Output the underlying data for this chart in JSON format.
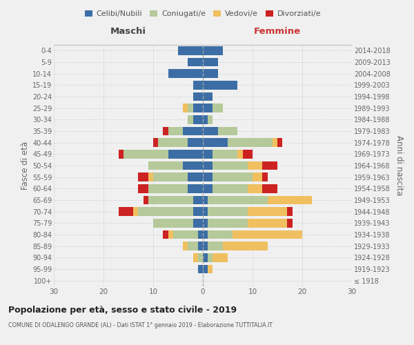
{
  "age_groups": [
    "100+",
    "95-99",
    "90-94",
    "85-89",
    "80-84",
    "75-79",
    "70-74",
    "65-69",
    "60-64",
    "55-59",
    "50-54",
    "45-49",
    "40-44",
    "35-39",
    "30-34",
    "25-29",
    "20-24",
    "15-19",
    "10-14",
    "5-9",
    "0-4"
  ],
  "birth_years": [
    "≤ 1918",
    "1919-1923",
    "1924-1928",
    "1929-1933",
    "1934-1938",
    "1939-1943",
    "1944-1948",
    "1949-1953",
    "1954-1958",
    "1959-1963",
    "1964-1968",
    "1969-1973",
    "1974-1978",
    "1979-1983",
    "1984-1988",
    "1989-1993",
    "1994-1998",
    "1999-2003",
    "2004-2008",
    "2009-2013",
    "2014-2018"
  ],
  "colors": {
    "celibi": "#3c6ea5",
    "coniugati": "#b5c99a",
    "vedovi": "#f0c060",
    "divorziati": "#cc2222"
  },
  "males": {
    "celibi": [
      0,
      1,
      0,
      1,
      1,
      2,
      2,
      2,
      3,
      3,
      4,
      7,
      3,
      4,
      2,
      2,
      2,
      2,
      7,
      3,
      5
    ],
    "coniugati": [
      0,
      0,
      1,
      2,
      5,
      8,
      11,
      9,
      8,
      7,
      7,
      9,
      6,
      3,
      1,
      1,
      0,
      0,
      0,
      0,
      0
    ],
    "vedovi": [
      0,
      0,
      1,
      1,
      1,
      0,
      1,
      0,
      0,
      1,
      0,
      0,
      0,
      0,
      0,
      1,
      0,
      0,
      0,
      0,
      0
    ],
    "divorziati": [
      0,
      0,
      0,
      0,
      1,
      0,
      3,
      1,
      2,
      2,
      0,
      1,
      1,
      1,
      0,
      0,
      0,
      0,
      0,
      0,
      0
    ]
  },
  "females": {
    "celibi": [
      0,
      1,
      1,
      1,
      1,
      1,
      1,
      1,
      2,
      2,
      2,
      2,
      5,
      3,
      1,
      2,
      2,
      7,
      3,
      3,
      4
    ],
    "coniugati": [
      0,
      0,
      1,
      3,
      5,
      8,
      8,
      12,
      7,
      8,
      7,
      5,
      9,
      4,
      1,
      2,
      0,
      0,
      0,
      0,
      0
    ],
    "vedovi": [
      0,
      1,
      3,
      9,
      14,
      8,
      8,
      9,
      3,
      2,
      3,
      1,
      1,
      0,
      0,
      0,
      0,
      0,
      0,
      0,
      0
    ],
    "divorziati": [
      0,
      0,
      0,
      0,
      0,
      1,
      1,
      0,
      3,
      1,
      3,
      2,
      1,
      0,
      0,
      0,
      0,
      0,
      0,
      0,
      0
    ]
  },
  "title": "Popolazione per età, sesso e stato civile - 2019",
  "subtitle": "COMUNE DI ODALENGO GRANDE (AL) - Dati ISTAT 1° gennaio 2019 - Elaborazione TUTTITALIA.IT",
  "xlabel_left": "Maschi",
  "xlabel_right": "Femmine",
  "ylabel_left": "Fasce di età",
  "ylabel_right": "Anni di nascita",
  "xlim": 30,
  "legend_labels": [
    "Celibi/Nubili",
    "Coniugati/e",
    "Vedovi/e",
    "Divorziati/e"
  ],
  "bg_color": "#f0f0f0",
  "grid_color": "#cccccc"
}
